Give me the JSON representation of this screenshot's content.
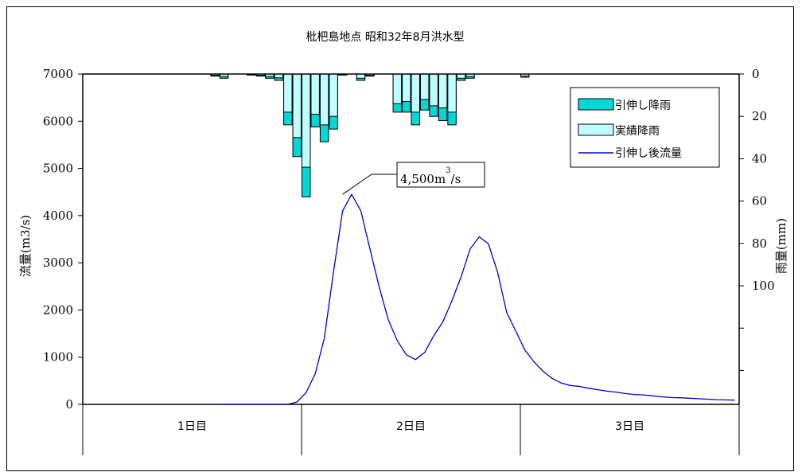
{
  "chart_data": {
    "type": "bar+line",
    "title": "枇杷島地点 昭和32年8月洪水型",
    "ylabel_left": "流量(m3/s)",
    "ylabel_right": "雨量(mm)",
    "ylim_left": [
      0,
      7000
    ],
    "yticks_left": [
      "0",
      "1000",
      "2000",
      "3000",
      "4000",
      "5000",
      "6000",
      "7000"
    ],
    "yticks_right": [
      "0",
      "20",
      "40",
      "60",
      "80",
      "100"
    ],
    "ylim_right_inverted": [
      0,
      156
    ],
    "x_hours": 72,
    "day_labels": [
      "1日目",
      "2日目",
      "3日目"
    ],
    "legend": [
      "引伸し降雨",
      "実績降雨",
      "引伸し後流量"
    ],
    "colors": {
      "stretched_rain": "#00d8d8",
      "actual_rain": "#c0ffff",
      "flow_line": "#0000cc",
      "bar_edge": "#000000"
    },
    "annotation": {
      "text": "4,500m",
      "sup": "3",
      "suffix": "/s",
      "x_hour": 28,
      "value": 4450
    },
    "rain": {
      "stretched": [
        [
          14.5,
          1
        ],
        [
          15.5,
          2
        ],
        [
          18.5,
          0.5
        ],
        [
          19.5,
          1
        ],
        [
          20.5,
          2
        ],
        [
          21.5,
          3
        ],
        [
          22.5,
          24
        ],
        [
          23.5,
          39
        ],
        [
          24.5,
          58
        ],
        [
          25.5,
          25
        ],
        [
          26.5,
          32
        ],
        [
          27.5,
          26
        ],
        [
          28.5,
          0.5
        ],
        [
          30.5,
          3
        ],
        [
          31.5,
          1
        ],
        [
          34.5,
          18
        ],
        [
          35.5,
          18
        ],
        [
          36.5,
          24
        ],
        [
          37.5,
          17
        ],
        [
          38.5,
          20
        ],
        [
          39.5,
          22
        ],
        [
          40.5,
          24
        ],
        [
          41.5,
          3
        ],
        [
          42.5,
          2
        ],
        [
          48.5,
          1.5
        ]
      ],
      "actual": [
        [
          14.5,
          0.6
        ],
        [
          15.5,
          1.2
        ],
        [
          18.5,
          0.3
        ],
        [
          19.5,
          0.6
        ],
        [
          20.5,
          1.2
        ],
        [
          21.5,
          1.8
        ],
        [
          22.5,
          18
        ],
        [
          23.5,
          30
        ],
        [
          24.5,
          44
        ],
        [
          25.5,
          19
        ],
        [
          26.5,
          24
        ],
        [
          27.5,
          20
        ],
        [
          28.5,
          0.3
        ],
        [
          30.5,
          2
        ],
        [
          31.5,
          0.6
        ],
        [
          34.5,
          14
        ],
        [
          35.5,
          13
        ],
        [
          36.5,
          18
        ],
        [
          37.5,
          12
        ],
        [
          38.5,
          15
        ],
        [
          39.5,
          16
        ],
        [
          40.5,
          18
        ],
        [
          41.5,
          2
        ],
        [
          42.5,
          1.2
        ],
        [
          48.5,
          1
        ]
      ]
    },
    "flow": {
      "x": [
        14.5,
        20,
        22.5,
        23.5,
        24.5,
        25.5,
        26.5,
        27.5,
        28.5,
        29.5,
        30.5,
        31.5,
        32.5,
        33.5,
        34.5,
        35.5,
        36.5,
        37.5,
        38.5,
        39.5,
        40.5,
        41.5,
        42.5,
        43.5,
        44.5,
        45.5,
        46.5,
        47.5,
        48.5,
        49.5,
        50.5,
        51.5,
        52.5,
        53.5,
        54.5,
        55.5,
        56.5,
        57.5,
        58.5,
        59.5,
        60.5,
        61.5,
        62.5,
        63.5,
        64.5,
        65.5,
        66.5,
        67.5,
        68.5,
        69.5,
        70.5,
        71.5
      ],
      "y": [
        0,
        0,
        0,
        50,
        250,
        650,
        1400,
        2800,
        4100,
        4450,
        4100,
        3300,
        2500,
        1800,
        1350,
        1050,
        950,
        1100,
        1450,
        1750,
        2200,
        2700,
        3300,
        3550,
        3400,
        2800,
        1950,
        1550,
        1150,
        900,
        700,
        550,
        450,
        400,
        380,
        340,
        310,
        280,
        260,
        230,
        210,
        200,
        180,
        160,
        145,
        140,
        130,
        120,
        110,
        100,
        95,
        90
      ]
    }
  }
}
